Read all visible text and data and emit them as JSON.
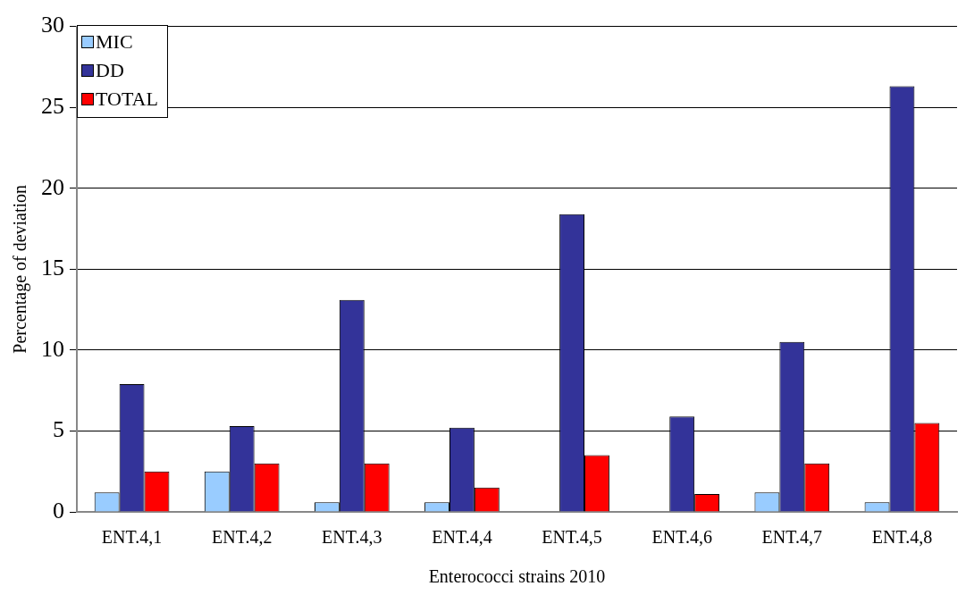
{
  "chart_data": {
    "type": "bar",
    "xlabel": "Enterococci strains 2010",
    "ylabel": "Percentage of deviation",
    "categories": [
      "ENT.4,1",
      "ENT.4,2",
      "ENT.4,3",
      "ENT.4,4",
      "ENT.4,5",
      "ENT.4,6",
      "ENT.4,7",
      "ENT.4,8"
    ],
    "series": [
      {
        "name": "MIC",
        "color": "#99ccff",
        "values": [
          1.2,
          2.5,
          0.6,
          0.6,
          0,
          0,
          1.2,
          0.6
        ]
      },
      {
        "name": "DD",
        "color": "#333399",
        "values": [
          7.9,
          5.3,
          13.1,
          5.2,
          18.4,
          5.9,
          10.5,
          26.3
        ]
      },
      {
        "name": "TOTAL",
        "color": "#ff0000",
        "values": [
          2.5,
          3.0,
          3.0,
          1.5,
          3.5,
          1.1,
          3.0,
          5.5
        ]
      }
    ],
    "ylim": [
      0,
      30
    ],
    "yticks": [
      0,
      5,
      10,
      15,
      20,
      25,
      30
    ],
    "grid": "y",
    "legend": "top left"
  }
}
